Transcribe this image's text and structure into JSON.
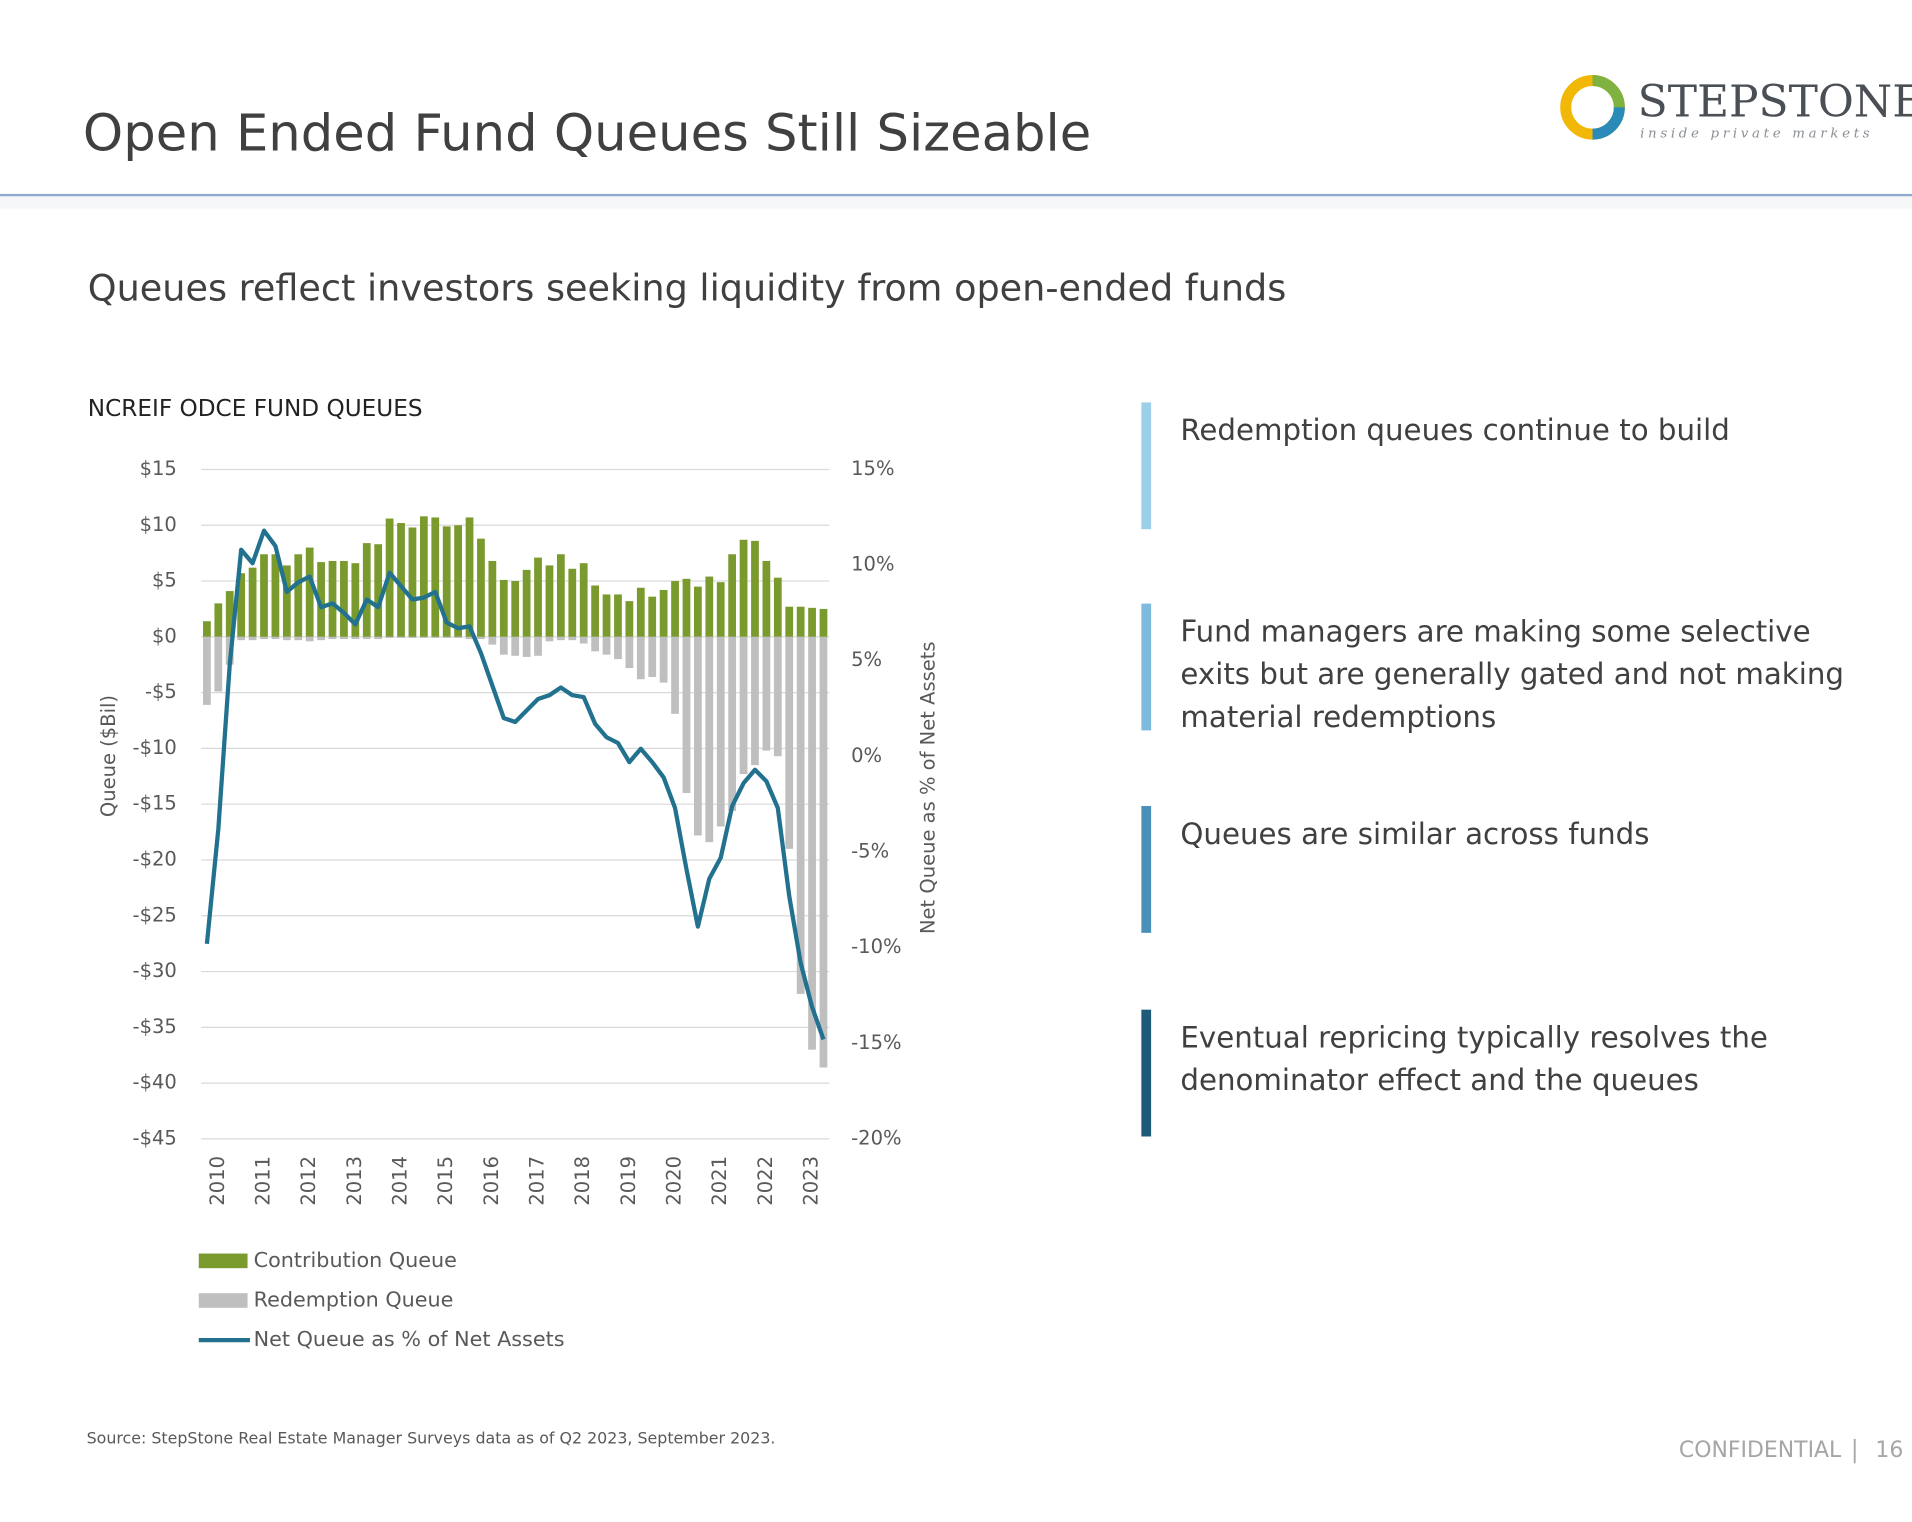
{
  "header": {
    "title": "Open Ended Fund Queues Still Sizeable",
    "logo": "STEPSTONE",
    "logo_tagline": "inside private markets"
  },
  "subtitle": "Queues reflect investors seeking liquidity from open-ended funds",
  "chart_data": {
    "type": "bar_line",
    "title": "NCREIF ODCE FUND QUEUES",
    "y_label": "Queue ($Bil)",
    "y2_label": "Net Queue as % of Net Assets",
    "categories": [
      null,
      "2010",
      null,
      null,
      null,
      "2011",
      null,
      null,
      null,
      "2012",
      null,
      null,
      null,
      "2013",
      null,
      null,
      null,
      "2014",
      null,
      null,
      null,
      "2015",
      null,
      null,
      null,
      "2016",
      null,
      null,
      null,
      "2017",
      null,
      null,
      null,
      "2018",
      null,
      null,
      null,
      "2019",
      null,
      null,
      null,
      "2020",
      null,
      null,
      null,
      "2021",
      null,
      null,
      null,
      "2022",
      null,
      null,
      null,
      "2023",
      null
    ],
    "series": [
      {
        "name": "Contribution Queue",
        "color": "#7a9a2e",
        "values": [
          1.4,
          3.0,
          4.1,
          5.7,
          6.2,
          7.4,
          7.4,
          6.4,
          7.4,
          8.0,
          6.7,
          6.8,
          6.8,
          6.6,
          8.4,
          8.3,
          10.6,
          10.2,
          9.8,
          10.8,
          10.7,
          9.9,
          10.0,
          10.7,
          8.8,
          6.8,
          5.1,
          5.0,
          6.0,
          7.1,
          6.4,
          7.4,
          6.1,
          6.6,
          4.6,
          3.8,
          3.8,
          3.2,
          4.4,
          3.6,
          4.2,
          5.0,
          5.2,
          4.5,
          5.4,
          4.9,
          7.4,
          8.7,
          8.6,
          6.8,
          5.3,
          2.7,
          2.7,
          2.6,
          2.5
        ]
      },
      {
        "name": "Redemption Queue",
        "color": "#bfbfbf",
        "values": [
          -6.1,
          -4.9,
          -2.5,
          -0.3,
          -0.3,
          -0.2,
          -0.2,
          -0.3,
          -0.3,
          -0.4,
          -0.3,
          -0.2,
          -0.2,
          -0.2,
          -0.2,
          -0.2,
          -0.1,
          -0.1,
          -0.1,
          -0.1,
          -0.1,
          -0.1,
          -0.1,
          -0.2,
          -0.2,
          -0.7,
          -1.6,
          -1.7,
          -1.8,
          -1.7,
          -0.4,
          -0.3,
          -0.3,
          -0.6,
          -1.3,
          -1.6,
          -2.0,
          -2.8,
          -3.8,
          -3.6,
          -4.1,
          -6.9,
          -14.0,
          -17.8,
          -18.4,
          -17.0,
          -15.6,
          -12.3,
          -11.5,
          -10.2,
          -10.7,
          -19.0,
          -32.0,
          -37.0,
          -38.6
        ]
      },
      {
        "name": "Net Queue as % of Net Assets",
        "color": "#21718f",
        "axis": "y2",
        "type": "line",
        "values": [
          -9.8,
          -3.8,
          4.8,
          10.8,
          10.1,
          11.8,
          11.0,
          8.6,
          9.1,
          9.4,
          7.8,
          8.0,
          7.5,
          6.9,
          8.2,
          7.8,
          9.6,
          8.9,
          8.2,
          8.3,
          8.6,
          7.0,
          6.7,
          6.8,
          5.4,
          3.7,
          2.0,
          1.8,
          2.4,
          3.0,
          3.2,
          3.6,
          3.2,
          3.1,
          1.7,
          1.0,
          0.7,
          -0.3,
          0.4,
          -0.3,
          -1.1,
          -2.7,
          -5.9,
          -8.9,
          -6.4,
          -5.3,
          -2.6,
          -1.4,
          -0.7,
          -1.3,
          -2.7,
          -7.3,
          -10.8,
          -13.1,
          -14.8
        ]
      }
    ],
    "ylim": [
      -45,
      15
    ],
    "yticks": [
      {
        "value": 15,
        "label": "$15"
      },
      {
        "value": 10,
        "label": "$10"
      },
      {
        "value": 5,
        "label": "$5"
      },
      {
        "value": 0,
        "label": "$0"
      },
      {
        "value": -5,
        "label": "-$5"
      },
      {
        "value": -10,
        "label": "-$10"
      },
      {
        "value": -15,
        "label": "-$15"
      },
      {
        "value": -20,
        "label": "-$20"
      },
      {
        "value": -25,
        "label": "-$25"
      },
      {
        "value": -30,
        "label": "-$30"
      },
      {
        "value": -35,
        "label": "-$35"
      },
      {
        "value": -40,
        "label": "-$40"
      },
      {
        "value": -45,
        "label": "-$45"
      }
    ],
    "y2lim": [
      -20,
      15
    ],
    "y2ticks": [
      {
        "value": 15,
        "label": "15%"
      },
      {
        "value": 10,
        "label": "10%"
      },
      {
        "value": 5,
        "label": "5%"
      },
      {
        "value": 0,
        "label": "0%"
      },
      {
        "value": -5,
        "label": "-5%"
      },
      {
        "value": -10,
        "label": "-10%"
      },
      {
        "value": -15,
        "label": "-15%"
      },
      {
        "value": -20,
        "label": "-20%"
      }
    ],
    "grid": true
  },
  "bullets": [
    {
      "text": "Redemption queues continue to build",
      "color": "#9dd0e8"
    },
    {
      "text": "Fund managers are making some selective exits but are generally gated and not making material redemptions",
      "color": "#7cbbdd"
    },
    {
      "text": "Queues are similar across funds",
      "color": "#4a90b8"
    },
    {
      "text": "Eventual repricing typically resolves the denominator effect and the queues",
      "color": "#1f5a78"
    }
  ],
  "source": "Source: StepStone Real Estate Manager Surveys data as of Q2 2023, September 2023.",
  "footer": {
    "confidential": "CONFIDENTIAL",
    "page": "16"
  }
}
